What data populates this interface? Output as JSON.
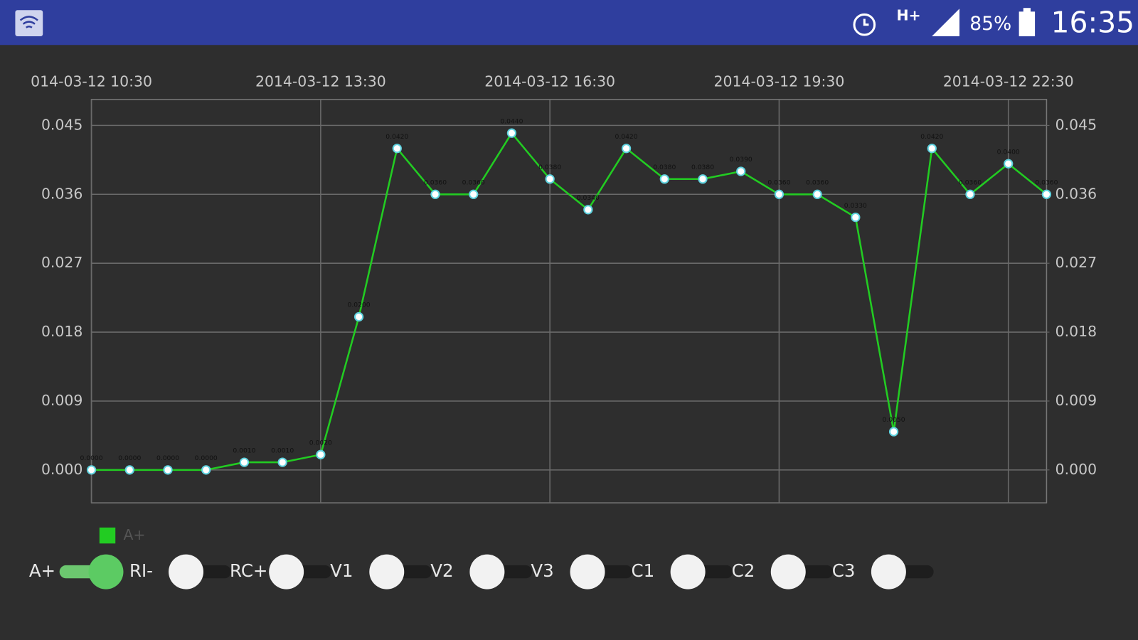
{
  "status_bar": {
    "network": "H+",
    "battery": "85%",
    "time": "16:35"
  },
  "chart_data": {
    "type": "line",
    "x": [
      "2014-03-12 10:30",
      "2014-03-12 11:00",
      "2014-03-12 11:30",
      "2014-03-12 12:00",
      "2014-03-12 12:30",
      "2014-03-12 13:00",
      "2014-03-12 13:30",
      "2014-03-12 14:00",
      "2014-03-12 14:30",
      "2014-03-12 15:00",
      "2014-03-12 15:30",
      "2014-03-12 16:00",
      "2014-03-12 16:30",
      "2014-03-12 17:00",
      "2014-03-12 17:30",
      "2014-03-12 18:00",
      "2014-03-12 18:30",
      "2014-03-12 19:00",
      "2014-03-12 19:30",
      "2014-03-12 20:00",
      "2014-03-12 20:30",
      "2014-03-12 21:00",
      "2014-03-12 21:30",
      "2014-03-12 22:00",
      "2014-03-12 22:30",
      "2014-03-12 23:00"
    ],
    "series": [
      {
        "name": "A+",
        "color": "#22cc22",
        "values": [
          0,
          0,
          0,
          0,
          0.001,
          0.001,
          0.002,
          0.02,
          0.042,
          0.036,
          0.036,
          0.044,
          0.038,
          0.034,
          0.042,
          0.038,
          0.038,
          0.039,
          0.036,
          0.036,
          0.033,
          0.005,
          0.042,
          0.036,
          0.04,
          0.036
        ],
        "value_labels": [
          "0.0000",
          "0.0000",
          "0.0000",
          "0.0000",
          "0.0010",
          "0.0010",
          "0.0020",
          "0.0200",
          "0.0420",
          "0.0360",
          "0.0360",
          "0.0440",
          "0.0380",
          "0.0340",
          "0.0420",
          "0.0380",
          "0.0380",
          "0.0390",
          "0.0360",
          "0.0360",
          "0.0330",
          "0.0050",
          "0.0420",
          "0.0360",
          "0.0400",
          "0.0360"
        ]
      }
    ],
    "xlim": [
      "2014-03-12 10:30",
      "2014-03-12 23:00"
    ],
    "xticks": [
      {
        "value": "2014-03-12 10:30",
        "label": "014-03-12 10:30"
      },
      "2014-03-12 13:30",
      "2014-03-12 16:30",
      "2014-03-12 19:30",
      "2014-03-12 22:30"
    ],
    "ylim": [
      -0.0043,
      0.0484
    ],
    "yticks": [
      {
        "value": 0,
        "label": "0.000"
      },
      0.009,
      0.018,
      0.027,
      0.036,
      0.045
    ],
    "y2lim": [
      -0.0043,
      0.0484
    ],
    "y2ticks": [
      {
        "value": 0,
        "label": "0.000"
      },
      0.009,
      0.018,
      0.027,
      0.036,
      0.045
    ],
    "grid": true,
    "legend": "bottom-left"
  },
  "switches": [
    {
      "label": "A+",
      "on": true
    },
    {
      "label": "RI-",
      "on": false
    },
    {
      "label": "RC+",
      "on": false
    },
    {
      "label": "V1",
      "on": false
    },
    {
      "label": "V2",
      "on": false
    },
    {
      "label": "V3",
      "on": false
    },
    {
      "label": "C1",
      "on": false
    },
    {
      "label": "C2",
      "on": false
    },
    {
      "label": "C3",
      "on": false
    }
  ]
}
